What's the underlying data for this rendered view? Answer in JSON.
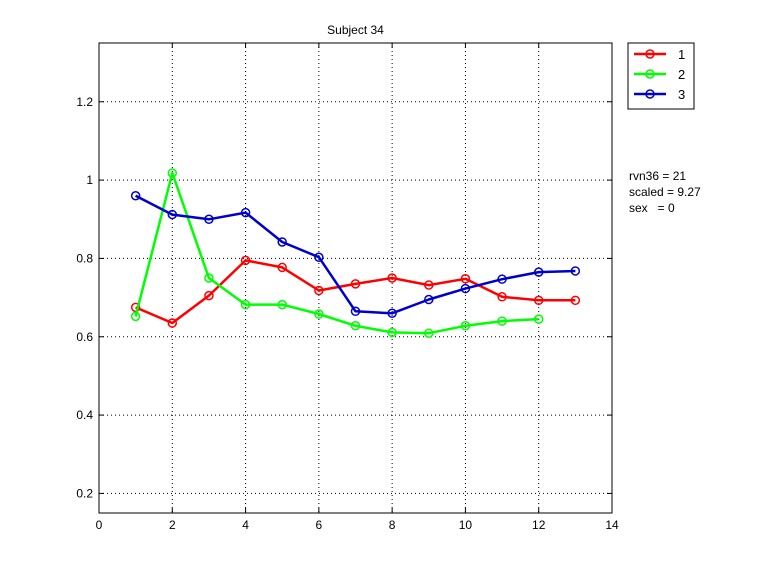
{
  "chart_data": {
    "type": "line",
    "title": "Subject 34",
    "xlabel": "",
    "ylabel": "",
    "xlim": [
      0,
      14
    ],
    "ylim": [
      0.15,
      1.35
    ],
    "xticks": [
      0,
      2,
      4,
      6,
      8,
      10,
      12,
      14
    ],
    "yticks": [
      0.2,
      0.4,
      0.6,
      0.8,
      1,
      1.2
    ],
    "xtick_labels": [
      "0",
      "2",
      "4",
      "6",
      "8",
      "10",
      "12",
      "14"
    ],
    "ytick_labels": [
      "0.2",
      "0.4",
      "0.6",
      "0.8",
      "1",
      "1.2"
    ],
    "grid": true,
    "legend_position": "outside-top-right",
    "series": [
      {
        "name": "1",
        "color": "#ff0000",
        "x": [
          1,
          2,
          3,
          4,
          5,
          6,
          7,
          8,
          9,
          10,
          11,
          12,
          13
        ],
        "values": [
          0.675,
          0.635,
          0.705,
          0.795,
          0.777,
          0.718,
          0.735,
          0.75,
          0.732,
          0.748,
          0.702,
          0.693,
          0.693
        ]
      },
      {
        "name": "2",
        "color": "#00ff00",
        "x": [
          1,
          2,
          3,
          4,
          5,
          6,
          7,
          8,
          9,
          10,
          11,
          12
        ],
        "values": [
          0.652,
          1.018,
          0.75,
          0.682,
          0.682,
          0.658,
          0.628,
          0.611,
          0.609,
          0.628,
          0.64,
          0.645
        ]
      },
      {
        "name": "3",
        "color": "#0000cc",
        "x": [
          1,
          2,
          3,
          4,
          5,
          6,
          7,
          8,
          9,
          10,
          11,
          12,
          13
        ],
        "values": [
          0.96,
          0.912,
          0.9,
          0.917,
          0.842,
          0.803,
          0.665,
          0.66,
          0.695,
          0.723,
          0.747,
          0.765,
          0.768
        ]
      }
    ],
    "annotations": [
      "rvn36 = 21",
      "scaled = 9.27",
      "sex   = 0"
    ]
  }
}
